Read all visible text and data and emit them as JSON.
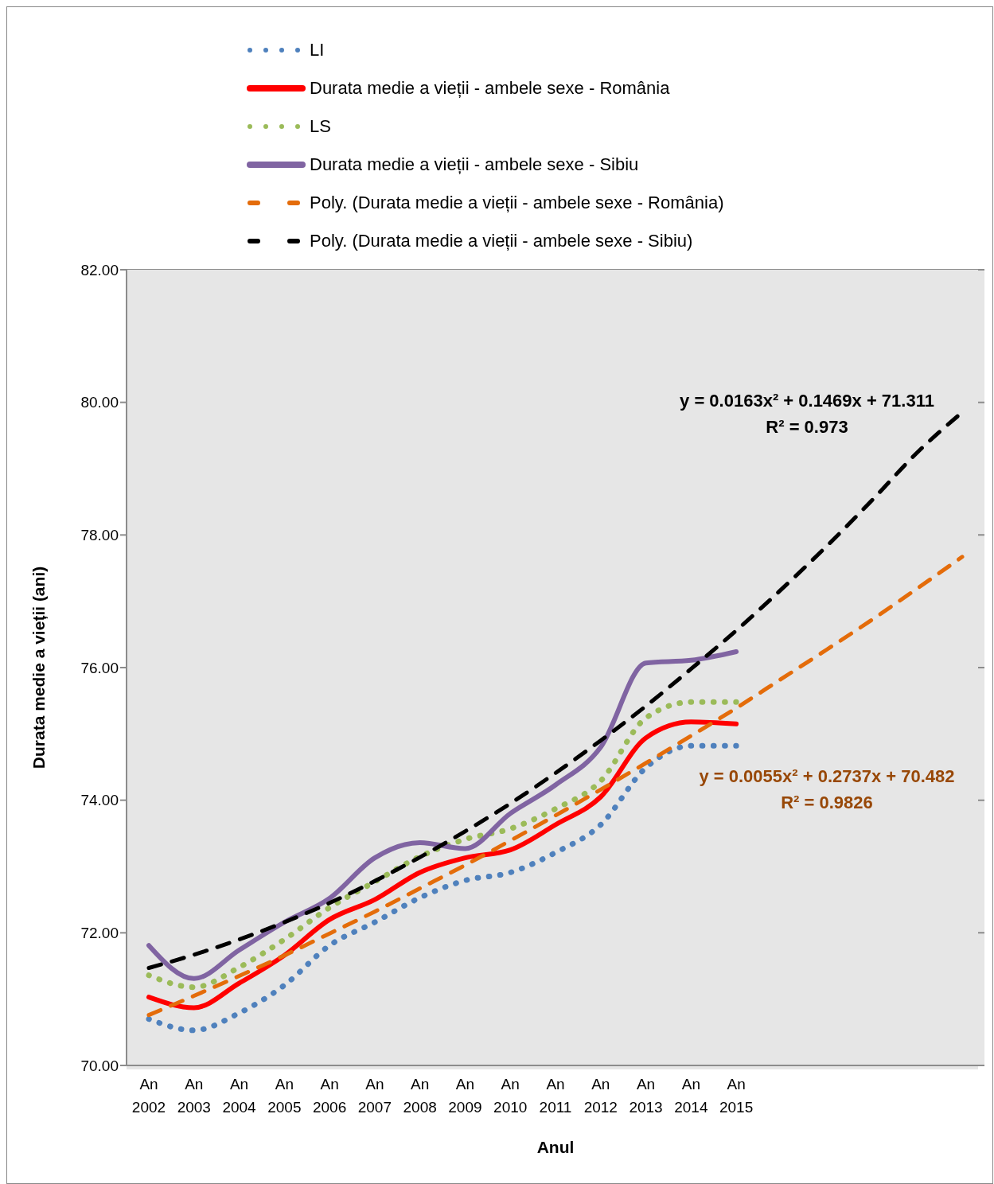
{
  "chart_data": {
    "type": "line",
    "xlabel": "Anul",
    "ylabel": "Durata medie a vieții (ani)",
    "categories": [
      "An 2002",
      "An 2003",
      "An 2004",
      "An 2005",
      "An 2006",
      "An 2007",
      "An 2008",
      "An 2009",
      "An 2010",
      "An 2011",
      "An 2012",
      "An 2013",
      "An 2014",
      "An 2015",
      null,
      null,
      null,
      null,
      null
    ],
    "series": [
      {
        "name": "LI",
        "color": "#4f81bd",
        "line_style": "dotted",
        "values": [
          70.7,
          70.53,
          70.79,
          71.21,
          71.81,
          72.16,
          72.53,
          72.79,
          72.91,
          73.21,
          73.63,
          74.49,
          74.82,
          74.82,
          null,
          null,
          null,
          null,
          null
        ]
      },
      {
        "name": "Durata medie a vieții - ambele sexe - România",
        "color": "#ff0000",
        "line_style": "solid",
        "values": [
          71.03,
          70.87,
          71.24,
          71.66,
          72.2,
          72.5,
          72.91,
          73.13,
          73.25,
          73.63,
          74.05,
          74.94,
          75.18,
          75.15,
          null,
          null,
          null,
          null,
          null
        ]
      },
      {
        "name": "LS",
        "color": "#9bbb59",
        "line_style": "dotted",
        "values": [
          71.36,
          71.18,
          71.48,
          71.9,
          72.38,
          72.77,
          73.15,
          73.41,
          73.57,
          73.87,
          74.29,
          75.24,
          75.48,
          75.48,
          null,
          null,
          null,
          null,
          null
        ]
      },
      {
        "name": "Durata medie a vieții - ambele sexe - Sibiu",
        "color": "#8064a2",
        "line_style": "solid",
        "values": [
          71.81,
          71.31,
          71.74,
          72.16,
          72.52,
          73.13,
          73.36,
          73.27,
          73.8,
          74.23,
          74.8,
          76.07,
          76.11,
          76.24,
          null,
          null,
          null,
          null,
          null
        ]
      },
      {
        "name": "Poly. (Durata medie a vieții - ambele sexe - România)",
        "color": "#e46c0a",
        "line_style": "dashed",
        "values": [
          70.76,
          71.05,
          71.35,
          71.66,
          71.99,
          72.32,
          72.67,
          73.02,
          73.39,
          73.77,
          74.16,
          74.56,
          74.97,
          75.39,
          75.83,
          76.27,
          76.72,
          77.19,
          77.67
        ]
      },
      {
        "name": "Poly. (Durata medie a vieții - ambele sexe - Sibiu)",
        "color": "#000000",
        "line_style": "dashed",
        "values": [
          71.47,
          71.67,
          71.9,
          72.16,
          72.45,
          72.78,
          73.14,
          73.53,
          73.95,
          74.41,
          74.9,
          75.42,
          75.98,
          76.56,
          77.18,
          77.83,
          78.52,
          79.24,
          79.85
        ]
      }
    ],
    "annotations": [
      "y = 0.0163x² + 0.1469x + 71.311\nR² = 0.973",
      "y = 0.0055x² + 0.2737x + 70.482\nR² = 0.9826"
    ],
    "ylim": [
      70,
      82
    ],
    "yticks": [
      {
        "value": 70,
        "label": "70.00"
      },
      {
        "value": 72,
        "label": "72.00"
      },
      {
        "value": 74,
        "label": "74.00"
      },
      {
        "value": 76,
        "label": "76.00"
      },
      {
        "value": 78,
        "label": "78.00"
      },
      {
        "value": 80,
        "label": "80.00"
      },
      {
        "value": 82,
        "label": "82.00"
      }
    ],
    "grid": "y",
    "legend": "top",
    "marker": "none"
  }
}
